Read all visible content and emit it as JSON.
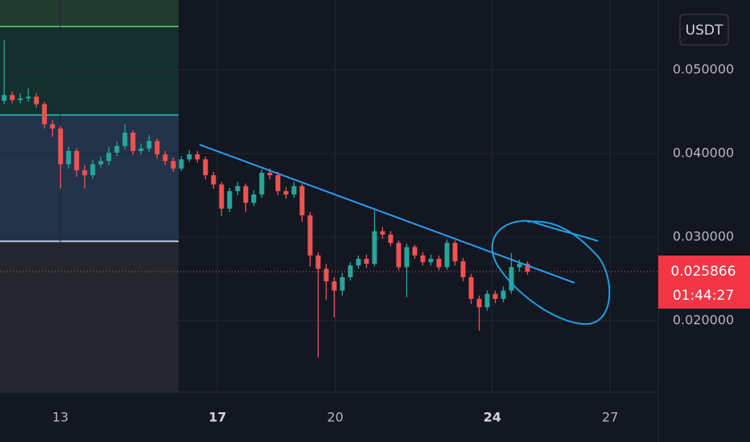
{
  "chart_data": {
    "type": "candlestick",
    "quote_currency": "USDT",
    "x": [
      11.57,
      11.775,
      11.98,
      12.185,
      12.39,
      12.595,
      12.8,
      13.005,
      13.21,
      13.415,
      13.62,
      13.825,
      14.03,
      14.235,
      14.44,
      14.645,
      14.85,
      15.055,
      15.26,
      15.465,
      15.67,
      15.875,
      16.08,
      16.285,
      16.49,
      16.695,
      16.9,
      17.105,
      17.31,
      17.515,
      17.72,
      17.925,
      18.13,
      18.335,
      18.54,
      18.745,
      18.95,
      19.155,
      19.36,
      19.565,
      19.77,
      19.975,
      20.18,
      20.385,
      20.59,
      20.795,
      21.0,
      21.205,
      21.41,
      21.615,
      21.82,
      22.025,
      22.23,
      22.435,
      22.64,
      22.845,
      23.05,
      23.255,
      23.46,
      23.665,
      23.87,
      24.075,
      24.28,
      24.485,
      24.69,
      24.895
    ],
    "open": [
      0.0463,
      0.047,
      0.0464,
      0.0466,
      0.0468,
      0.0459,
      0.0435,
      0.043,
      0.0387,
      0.0403,
      0.038,
      0.0374,
      0.0387,
      0.0391,
      0.0401,
      0.0409,
      0.0425,
      0.0403,
      0.0406,
      0.0415,
      0.0399,
      0.0391,
      0.0382,
      0.0393,
      0.0399,
      0.0393,
      0.0374,
      0.0363,
      0.0334,
      0.0355,
      0.0361,
      0.0341,
      0.0351,
      0.0377,
      0.0374,
      0.0355,
      0.0351,
      0.0361,
      0.0326,
      0.0278,
      0.0262,
      0.0247,
      0.0236,
      0.0252,
      0.0266,
      0.0274,
      0.0268,
      0.0307,
      0.0303,
      0.0293,
      0.0264,
      0.0288,
      0.0278,
      0.027,
      0.0274,
      0.0264,
      0.0293,
      0.0271,
      0.0252,
      0.0226,
      0.0216,
      0.0232,
      0.0226,
      0.0236,
      0.0264,
      0.0268
    ],
    "high": [
      0.0536,
      0.0474,
      0.0472,
      0.0478,
      0.0472,
      0.0462,
      0.044,
      0.0433,
      0.0408,
      0.0406,
      0.0386,
      0.0392,
      0.0396,
      0.0408,
      0.0414,
      0.0435,
      0.0428,
      0.0412,
      0.0422,
      0.0418,
      0.0403,
      0.0395,
      0.0397,
      0.0404,
      0.0403,
      0.0396,
      0.0378,
      0.0366,
      0.0359,
      0.0366,
      0.0364,
      0.0356,
      0.0381,
      0.0382,
      0.0378,
      0.036,
      0.0366,
      0.0364,
      0.033,
      0.0282,
      0.0268,
      0.0252,
      0.0257,
      0.027,
      0.0278,
      0.0279,
      0.0332,
      0.0312,
      0.0307,
      0.0296,
      0.0292,
      0.0291,
      0.0282,
      0.0279,
      0.0278,
      0.0297,
      0.0296,
      0.0275,
      0.0256,
      0.023,
      0.0236,
      0.0236,
      0.0241,
      0.0281,
      0.0273,
      0.0271
    ],
    "low": [
      0.0459,
      0.046,
      0.046,
      0.0462,
      0.0455,
      0.043,
      0.042,
      0.0358,
      0.0382,
      0.0372,
      0.0358,
      0.037,
      0.0383,
      0.0386,
      0.0397,
      0.0405,
      0.0398,
      0.0399,
      0.0402,
      0.0394,
      0.0386,
      0.0378,
      0.0379,
      0.039,
      0.0389,
      0.0369,
      0.0358,
      0.0325,
      0.033,
      0.035,
      0.033,
      0.0337,
      0.0347,
      0.0369,
      0.035,
      0.0346,
      0.0347,
      0.0318,
      0.0265,
      0.0156,
      0.0225,
      0.0204,
      0.023,
      0.0248,
      0.0262,
      0.0263,
      0.0265,
      0.0298,
      0.0289,
      0.026,
      0.0228,
      0.0274,
      0.0266,
      0.0266,
      0.026,
      0.0261,
      0.0266,
      0.0247,
      0.022,
      0.0188,
      0.0212,
      0.0221,
      0.0222,
      0.0232,
      0.0259,
      0.0255
    ],
    "close": [
      0.047,
      0.0464,
      0.0466,
      0.0468,
      0.0459,
      0.0435,
      0.043,
      0.0387,
      0.0403,
      0.038,
      0.0374,
      0.0387,
      0.0391,
      0.0401,
      0.0409,
      0.0425,
      0.0403,
      0.0406,
      0.0415,
      0.0399,
      0.0391,
      0.0382,
      0.0393,
      0.0399,
      0.0393,
      0.0374,
      0.0363,
      0.0334,
      0.0355,
      0.0361,
      0.0341,
      0.0351,
      0.0377,
      0.0374,
      0.0355,
      0.0351,
      0.0361,
      0.0326,
      0.0278,
      0.0262,
      0.0247,
      0.0236,
      0.0252,
      0.0266,
      0.0274,
      0.0268,
      0.0307,
      0.0303,
      0.0293,
      0.0264,
      0.0288,
      0.0278,
      0.027,
      0.0274,
      0.0264,
      0.0293,
      0.0271,
      0.0252,
      0.0226,
      0.0216,
      0.0232,
      0.0226,
      0.0236,
      0.0264,
      0.0268,
      0.025866
    ],
    "up_color": "#26a69a",
    "down_color": "#ef5350",
    "xlim": [
      11.463,
      28.225
    ],
    "xticks": [
      13,
      17,
      20,
      24,
      27
    ],
    "bold_xticks": [
      17,
      24
    ],
    "ylim": [
      0.01144,
      0.05837
    ],
    "yticks": [
      {
        "value": 0.02,
        "label": "0.020000"
      },
      {
        "value": 0.03,
        "label": "0.030000"
      },
      {
        "value": 0.04,
        "label": "0.040000"
      },
      {
        "value": 0.05,
        "label": "0.050000"
      }
    ],
    "grid": true,
    "last_price": 0.025866,
    "countdown": "01:44:27",
    "position": {
      "x_end": 16.01,
      "target": 0.0552,
      "entry": 0.0446,
      "stop": 0.0295
    },
    "trendline": {
      "x": [
        16.545,
        26.094
      ],
      "y": [
        0.04106,
        0.02452
      ],
      "color": "#2a9df4"
    }
  }
}
